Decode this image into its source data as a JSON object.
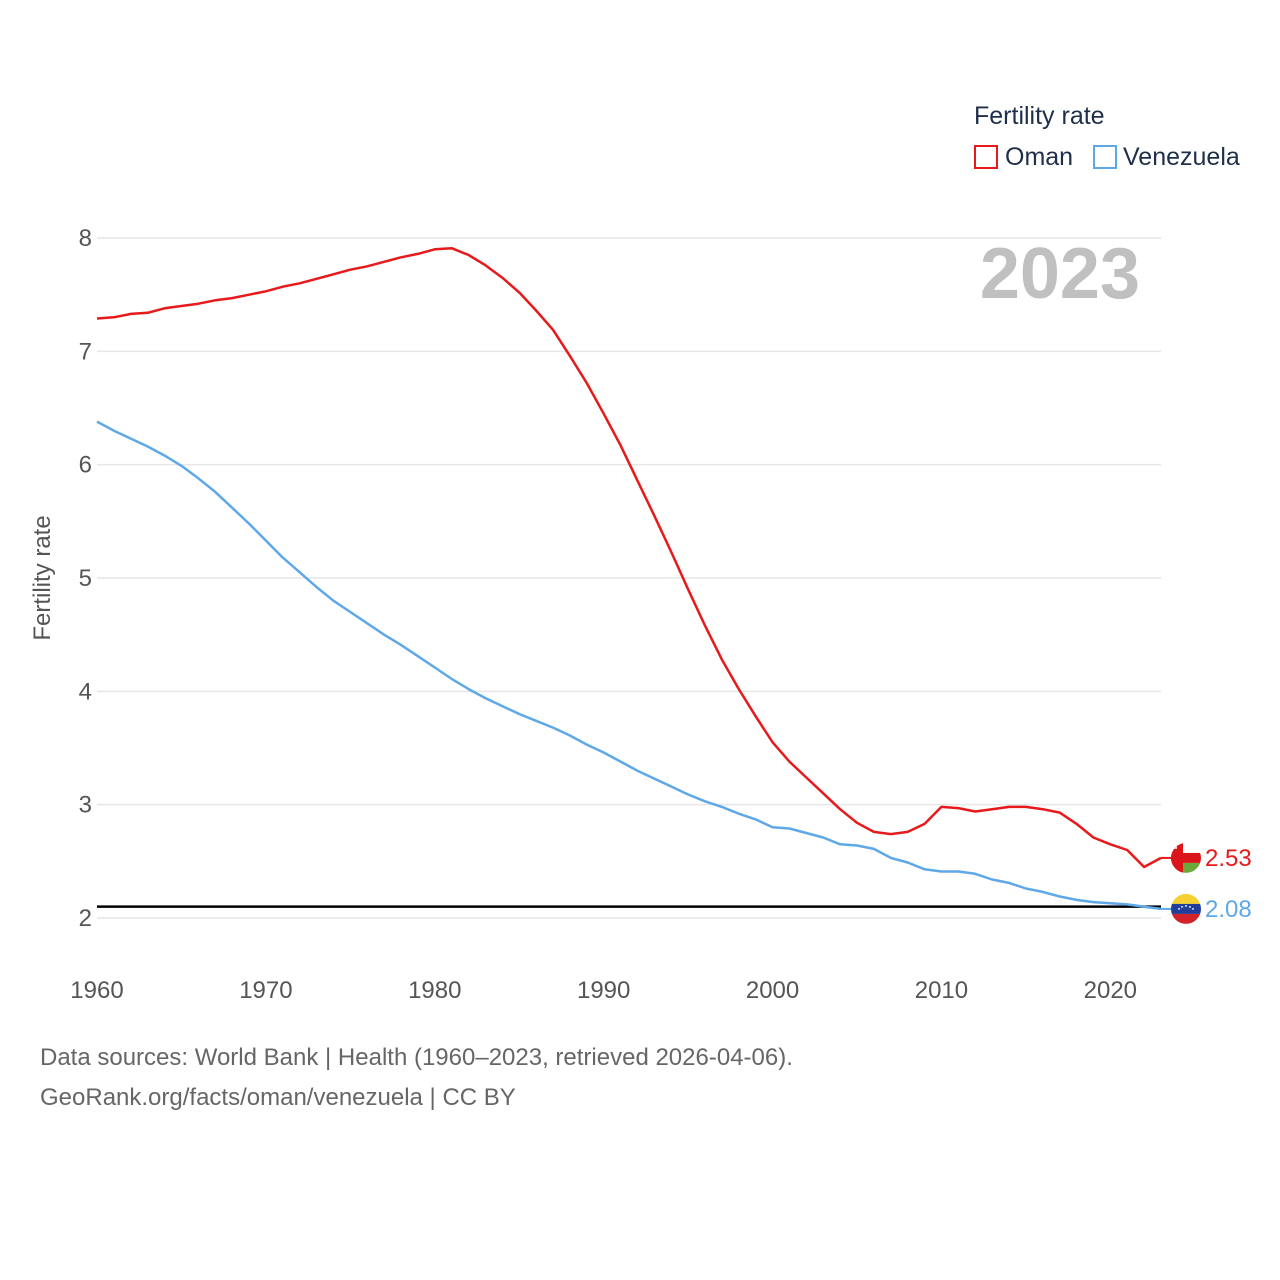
{
  "chart_data": {
    "type": "line",
    "title": "Fertility rate",
    "current_year_label": "2023",
    "xlabel": "",
    "ylabel": "Fertility rate",
    "xlim": [
      1960,
      2023
    ],
    "ylim": [
      2,
      8
    ],
    "x_ticks": [
      1960,
      1970,
      1980,
      1990,
      2000,
      2010,
      2020
    ],
    "y_ticks": [
      2,
      3,
      4,
      5,
      6,
      7,
      8
    ],
    "grid": true,
    "legend_position": "top-right",
    "reference_line": {
      "y": 2.1,
      "color": "#000000"
    },
    "x": [
      1960,
      1961,
      1962,
      1963,
      1964,
      1965,
      1966,
      1967,
      1968,
      1969,
      1970,
      1971,
      1972,
      1973,
      1974,
      1975,
      1976,
      1977,
      1978,
      1979,
      1980,
      1981,
      1982,
      1983,
      1984,
      1985,
      1986,
      1987,
      1988,
      1989,
      1990,
      1991,
      1992,
      1993,
      1994,
      1995,
      1996,
      1997,
      1998,
      1999,
      2000,
      2001,
      2002,
      2003,
      2004,
      2005,
      2006,
      2007,
      2008,
      2009,
      2010,
      2011,
      2012,
      2013,
      2014,
      2015,
      2016,
      2017,
      2018,
      2019,
      2020,
      2021,
      2022,
      2023
    ],
    "series": [
      {
        "name": "Oman",
        "color": "#e8191b",
        "end_label": "2.53",
        "flag": "oman-flag-icon",
        "values": [
          7.29,
          7.3,
          7.33,
          7.34,
          7.38,
          7.4,
          7.42,
          7.45,
          7.47,
          7.5,
          7.53,
          7.57,
          7.6,
          7.64,
          7.68,
          7.72,
          7.75,
          7.79,
          7.83,
          7.86,
          7.9,
          7.91,
          7.85,
          7.76,
          7.65,
          7.52,
          7.36,
          7.19,
          6.96,
          6.72,
          6.45,
          6.17,
          5.86,
          5.55,
          5.23,
          4.9,
          4.58,
          4.28,
          4.02,
          3.78,
          3.55,
          3.38,
          3.24,
          3.1,
          2.96,
          2.84,
          2.76,
          2.74,
          2.76,
          2.83,
          2.98,
          2.97,
          2.94,
          2.96,
          2.98,
          2.98,
          2.96,
          2.93,
          2.83,
          2.71,
          2.65,
          2.6,
          2.45,
          2.53
        ]
      },
      {
        "name": "Venezuela",
        "color": "#5fa8e8",
        "end_label": "2.08",
        "flag": "venezuela-flag-icon",
        "values": [
          6.38,
          6.3,
          6.23,
          6.16,
          6.08,
          5.99,
          5.88,
          5.76,
          5.62,
          5.48,
          5.33,
          5.18,
          5.05,
          4.92,
          4.8,
          4.7,
          4.6,
          4.5,
          4.41,
          4.31,
          4.21,
          4.11,
          4.02,
          3.94,
          3.87,
          3.8,
          3.74,
          3.68,
          3.61,
          3.53,
          3.46,
          3.38,
          3.3,
          3.23,
          3.16,
          3.09,
          3.03,
          2.98,
          2.92,
          2.87,
          2.8,
          2.79,
          2.75,
          2.71,
          2.65,
          2.64,
          2.61,
          2.53,
          2.49,
          2.43,
          2.41,
          2.41,
          2.39,
          2.34,
          2.31,
          2.26,
          2.23,
          2.19,
          2.16,
          2.14,
          2.13,
          2.12,
          2.1,
          2.08
        ]
      }
    ]
  },
  "legend": {
    "title": "Fertility rate",
    "items": [
      "Oman",
      "Venezuela"
    ]
  },
  "footer": {
    "sources": "Data sources: World Bank | Health (1960–2023, retrieved 2026-04-06).",
    "credit": "GeoRank.org/facts/oman/venezuela | CC BY"
  }
}
